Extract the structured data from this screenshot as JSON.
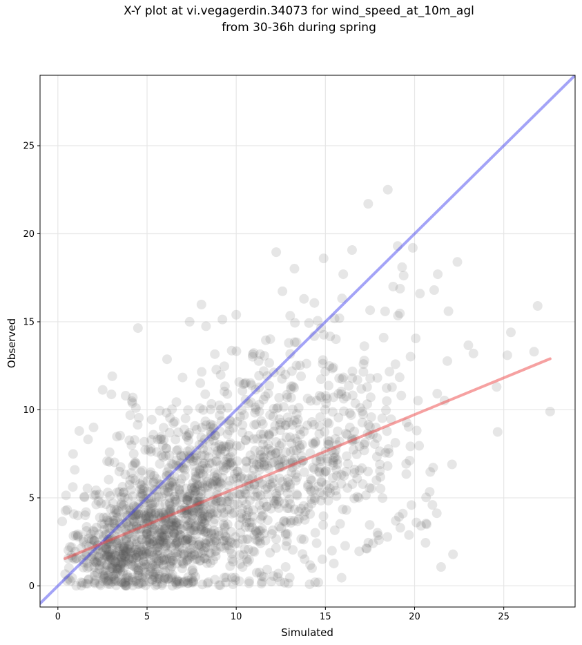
{
  "title": {
    "line1": "X-Y plot at vi.vegagerdin.34073 for wind_speed_at_10m_agl",
    "line2": "from 30-36h during spring"
  },
  "chart_data": {
    "type": "scatter",
    "xlabel": "Simulated",
    "ylabel": "Observed",
    "xlim": [
      -1,
      29
    ],
    "ylim": [
      -1.2,
      29
    ],
    "xticks": [
      0,
      5,
      10,
      15,
      20,
      25
    ],
    "yticks": [
      0,
      5,
      10,
      15,
      20,
      25
    ],
    "grid": true,
    "point_color": "#555555",
    "point_alpha": 0.15,
    "identity_line": {
      "color": "#3333ee",
      "from": [
        -1,
        -1
      ],
      "to": [
        29,
        29
      ]
    },
    "regression_line": {
      "color": "#ee4444",
      "from": [
        0.4,
        1.55
      ],
      "to": [
        27.6,
        12.9
      ]
    },
    "highlight_points": [
      {
        "x": 18.5,
        "y": 22.5
      },
      {
        "x": 17.4,
        "y": 21.7
      },
      {
        "x": 19.9,
        "y": 19.2
      },
      {
        "x": 14.9,
        "y": 18.6
      },
      {
        "x": 22.4,
        "y": 18.4
      },
      {
        "x": 19.3,
        "y": 18.1
      },
      {
        "x": 21.3,
        "y": 17.7
      },
      {
        "x": 16.0,
        "y": 17.7
      },
      {
        "x": 18.8,
        "y": 17.0
      },
      {
        "x": 21.1,
        "y": 16.8
      },
      {
        "x": 20.3,
        "y": 16.6
      },
      {
        "x": 26.9,
        "y": 15.9
      },
      {
        "x": 21.9,
        "y": 15.6
      },
      {
        "x": 25.4,
        "y": 14.4
      },
      {
        "x": 26.7,
        "y": 13.3
      },
      {
        "x": 23.3,
        "y": 13.2
      },
      {
        "x": 25.2,
        "y": 13.1
      },
      {
        "x": 24.6,
        "y": 11.3
      },
      {
        "x": 27.6,
        "y": 9.9
      },
      {
        "x": 20.1,
        "y": 3.6
      },
      {
        "x": 19.2,
        "y": 3.3
      },
      {
        "x": 1.2,
        "y": 8.8
      },
      {
        "x": 2.0,
        "y": 9.0
      },
      {
        "x": 3.8,
        "y": 10.8
      },
      {
        "x": 4.2,
        "y": 10.7
      },
      {
        "x": 22.1,
        "y": 6.9
      },
      {
        "x": 21.0,
        "y": 4.6
      },
      {
        "x": 10.0,
        "y": 15.4
      },
      {
        "x": 13.8,
        "y": 16.3
      },
      {
        "x": 18.0,
        "y": 2.6
      }
    ],
    "clusters": [
      {
        "cx": 5.5,
        "cy": 3.0,
        "sx": 2.2,
        "sy": 2.0,
        "n": 700
      },
      {
        "cx": 8.5,
        "cy": 5.5,
        "sx": 2.6,
        "sy": 2.6,
        "n": 450
      },
      {
        "cx": 12.5,
        "cy": 7.5,
        "sx": 3.0,
        "sy": 3.4,
        "n": 380
      },
      {
        "cx": 16.5,
        "cy": 8.5,
        "sx": 2.6,
        "sy": 3.8,
        "n": 170
      },
      {
        "cx": 3.0,
        "cy": 1.5,
        "sx": 1.2,
        "sy": 1.0,
        "n": 180
      }
    ]
  }
}
